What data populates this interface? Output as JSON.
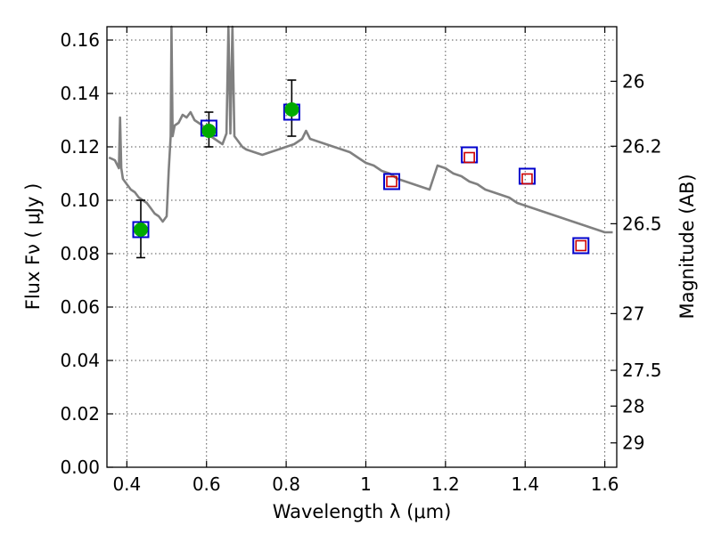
{
  "chart_data": {
    "type": "scatter",
    "xlabel": "Wavelength  λ (μm)",
    "ylabel": "Flux  Fν  ( μJy )",
    "y2label": "Magnitude (AB)",
    "xlim": [
      0.35,
      1.63
    ],
    "ylim": [
      0.0,
      0.165
    ],
    "grid": true,
    "x_ticks": [
      0.4,
      0.6,
      0.8,
      1.0,
      1.2,
      1.4,
      1.6
    ],
    "x_tick_labels": [
      "0.4",
      "0.6",
      "0.8",
      "1",
      "1.2",
      "1.4",
      "1.6"
    ],
    "y_ticks": [
      0.0,
      0.02,
      0.04,
      0.06,
      0.08,
      0.1,
      0.12,
      0.14,
      0.16
    ],
    "y_tick_labels": [
      "0.00",
      "0.02",
      "0.04",
      "0.06",
      "0.08",
      "0.10",
      "0.12",
      "0.14",
      "0.16"
    ],
    "y2_ticks": [
      {
        "label": "26",
        "mag": 26.0
      },
      {
        "label": "26.2",
        "mag": 26.2
      },
      {
        "label": "26.5",
        "mag": 26.5
      },
      {
        "label": "27",
        "mag": 27.0
      },
      {
        "label": "27.5",
        "mag": 27.5
      },
      {
        "label": "28",
        "mag": 28.0
      },
      {
        "label": "29",
        "mag": 29.0
      }
    ],
    "series": [
      {
        "kind": "model-spectrum",
        "color": "#808080",
        "x": [
          0.355,
          0.37,
          0.38,
          0.383,
          0.386,
          0.39,
          0.4,
          0.41,
          0.42,
          0.43,
          0.44,
          0.45,
          0.46,
          0.47,
          0.48,
          0.49,
          0.5,
          0.505,
          0.51,
          0.512,
          0.515,
          0.52,
          0.53,
          0.54,
          0.55,
          0.56,
          0.57,
          0.58,
          0.59,
          0.6,
          0.61,
          0.62,
          0.63,
          0.64,
          0.65,
          0.655,
          0.66,
          0.665,
          0.67,
          0.68,
          0.69,
          0.7,
          0.72,
          0.74,
          0.76,
          0.78,
          0.8,
          0.82,
          0.84,
          0.85,
          0.86,
          0.88,
          0.9,
          0.92,
          0.94,
          0.96,
          0.98,
          1.0,
          1.02,
          1.04,
          1.06,
          1.08,
          1.1,
          1.12,
          1.14,
          1.16,
          1.18,
          1.2,
          1.22,
          1.24,
          1.26,
          1.28,
          1.3,
          1.32,
          1.34,
          1.36,
          1.38,
          1.4,
          1.42,
          1.44,
          1.46,
          1.48,
          1.5,
          1.52,
          1.54,
          1.56,
          1.58,
          1.6,
          1.62
        ],
        "values": [
          0.116,
          0.115,
          0.112,
          0.131,
          0.112,
          0.108,
          0.106,
          0.104,
          0.103,
          0.101,
          0.1,
          0.099,
          0.097,
          0.095,
          0.094,
          0.092,
          0.094,
          0.111,
          0.124,
          0.165,
          0.124,
          0.128,
          0.129,
          0.132,
          0.131,
          0.133,
          0.13,
          0.129,
          0.128,
          0.125,
          0.124,
          0.123,
          0.122,
          0.121,
          0.125,
          0.165,
          0.125,
          0.165,
          0.124,
          0.122,
          0.12,
          0.119,
          0.118,
          0.117,
          0.118,
          0.119,
          0.12,
          0.121,
          0.123,
          0.126,
          0.123,
          0.122,
          0.121,
          0.12,
          0.119,
          0.118,
          0.116,
          0.114,
          0.113,
          0.111,
          0.11,
          0.108,
          0.107,
          0.106,
          0.105,
          0.104,
          0.113,
          0.112,
          0.11,
          0.109,
          0.107,
          0.106,
          0.104,
          0.103,
          0.102,
          0.101,
          0.099,
          0.098,
          0.097,
          0.096,
          0.095,
          0.094,
          0.093,
          0.092,
          0.091,
          0.09,
          0.089,
          0.088,
          0.088
        ]
      },
      {
        "kind": "model-photometry",
        "marker": "open-square",
        "color": "#0000cc",
        "x": [
          0.435,
          0.606,
          0.814,
          1.065,
          1.26,
          1.405,
          1.54
        ],
        "values": [
          0.089,
          0.127,
          0.133,
          0.107,
          0.117,
          0.109,
          0.083
        ]
      },
      {
        "kind": "observed-photometry",
        "marker": "open-square",
        "color": "#cc0000",
        "x": [
          1.065,
          1.26,
          1.405,
          1.54
        ],
        "values": [
          0.107,
          0.116,
          0.108,
          0.083
        ]
      },
      {
        "kind": "observed-photometry-with-errors",
        "marker": "filled-circle",
        "color": "#00aa00",
        "x": [
          0.435,
          0.606,
          0.814
        ],
        "values": [
          0.089,
          0.126,
          0.134
        ],
        "err_low": [
          0.0785,
          0.12,
          0.124
        ],
        "err_high": [
          0.1,
          0.133,
          0.145
        ]
      }
    ]
  }
}
